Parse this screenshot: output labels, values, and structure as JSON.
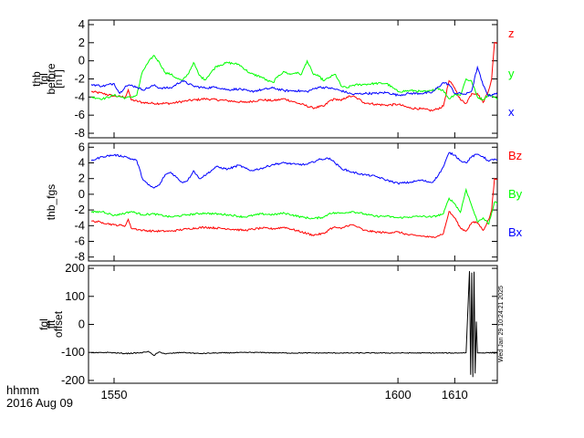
{
  "chart_data": [
    {
      "type": "line",
      "ylabel_lines": [
        "thb",
        "fgl",
        "before",
        "[nT]"
      ],
      "ylim": [
        -8.5,
        4.5
      ],
      "yticks": [
        4,
        2,
        0,
        -2,
        -4,
        -6,
        -8
      ],
      "xlim": [
        1545.5,
        1617.5
      ],
      "series": [
        {
          "name": "z",
          "color": "#ff0000",
          "x": [
            1546,
            1548,
            1550,
            1552,
            1552.5,
            1553,
            1555,
            1557,
            1560,
            1563,
            1566,
            1570,
            1573,
            1576,
            1578,
            1580,
            1583,
            1585,
            1587,
            1588,
            1589,
            1590,
            1591,
            1592,
            1593,
            1594,
            1596,
            1598,
            1600,
            1602,
            1604,
            1606,
            1607,
            1608,
            1609,
            1610,
            1611,
            1612,
            1613,
            1614,
            1615,
            1616,
            1616.5,
            1617,
            1617.5
          ],
          "y": [
            -3.4,
            -3.6,
            -3.9,
            -4.0,
            -3.2,
            -4.3,
            -4.6,
            -4.7,
            -4.7,
            -4.4,
            -4.2,
            -4.4,
            -4.6,
            -4.3,
            -4.4,
            -4.2,
            -4.8,
            -5.2,
            -5.0,
            -4.4,
            -4.2,
            -4.4,
            -4.0,
            -3.9,
            -4.2,
            -4.6,
            -4.8,
            -4.9,
            -4.8,
            -5.2,
            -5.3,
            -5.5,
            -5.3,
            -5.0,
            -2.2,
            -3.0,
            -4.3,
            -4.7,
            -3.6,
            -3.6,
            -4.6,
            -3.2,
            -2.0,
            2.0,
            2.0
          ]
        },
        {
          "name": "y",
          "color": "#00ff00",
          "x": [
            1546,
            1548,
            1550,
            1552,
            1553,
            1554,
            1555,
            1556,
            1557,
            1558,
            1559,
            1560,
            1561,
            1562,
            1563,
            1564,
            1565,
            1566,
            1568,
            1570,
            1572,
            1574,
            1576,
            1577,
            1578,
            1579,
            1580,
            1581,
            1582,
            1583,
            1584,
            1585,
            1586,
            1587,
            1588,
            1589,
            1590,
            1591,
            1592,
            1594,
            1596,
            1598,
            1600,
            1602,
            1603,
            1604,
            1605,
            1606,
            1607,
            1608,
            1609,
            1610,
            1611,
            1612,
            1613,
            1614,
            1615,
            1616,
            1617,
            1617.5
          ],
          "y": [
            -4.0,
            -4.2,
            -3.8,
            -4.1,
            -4.0,
            -3.8,
            -1.2,
            -0.2,
            0.6,
            -0.2,
            -1.3,
            -1.5,
            -1.9,
            -2.2,
            -1.5,
            -0.2,
            -1.6,
            -2.1,
            -0.6,
            -0.2,
            -0.4,
            -1.4,
            -1.8,
            -2.2,
            -2.4,
            -1.6,
            -1.2,
            -1.5,
            -1.3,
            -1.5,
            0.0,
            -1.4,
            -1.7,
            -2.2,
            -1.8,
            -1.5,
            -2.8,
            -3.0,
            -2.7,
            -2.6,
            -2.5,
            -2.5,
            -3.4,
            -3.3,
            -3.3,
            -3.4,
            -3.4,
            -3.3,
            -3.0,
            -3.3,
            -4.2,
            -3.7,
            -3.8,
            -2.0,
            -2.3,
            -4.0,
            -4.3,
            -3.7,
            -4.0,
            -4.3
          ]
        },
        {
          "name": "x",
          "color": "#0000ff",
          "x": [
            1546,
            1548,
            1550,
            1551,
            1552,
            1553,
            1554,
            1555,
            1556,
            1557,
            1558,
            1560,
            1562,
            1564,
            1566,
            1568,
            1570,
            1572,
            1574,
            1576,
            1578,
            1580,
            1582,
            1584,
            1586,
            1588,
            1590,
            1592,
            1594,
            1596,
            1598,
            1600,
            1602,
            1604,
            1606,
            1608,
            1609,
            1610,
            1611,
            1612,
            1613,
            1614,
            1615,
            1616,
            1617,
            1617.5
          ],
          "y": [
            -2.6,
            -2.8,
            -2.5,
            -3.6,
            -2.8,
            -2.7,
            -2.9,
            -3.2,
            -3.0,
            -2.7,
            -3.0,
            -3.0,
            -2.2,
            -2.8,
            -3.0,
            -2.9,
            -3.2,
            -3.1,
            -3.4,
            -3.2,
            -3.0,
            -3.3,
            -3.3,
            -3.4,
            -2.9,
            -3.0,
            -3.3,
            -3.7,
            -3.6,
            -3.6,
            -3.5,
            -3.8,
            -3.6,
            -3.6,
            -3.5,
            -2.4,
            -2.6,
            -3.6,
            -3.6,
            -3.7,
            -3.3,
            -0.7,
            -2.7,
            -3.9,
            -3.6,
            -3.7
          ]
        }
      ]
    },
    {
      "type": "line",
      "ylabel_lines": [
        "thb_fgs"
      ],
      "ylim": [
        -8.5,
        6.5
      ],
      "yticks": [
        6,
        4,
        2,
        0,
        -2,
        -4,
        -6,
        -8
      ],
      "xlim": [
        1545.5,
        1617.5
      ],
      "series": [
        {
          "name": "Bz",
          "color": "#ff0000",
          "x": [
            1546,
            1548,
            1550,
            1552,
            1552.5,
            1553,
            1555,
            1557,
            1560,
            1563,
            1566,
            1570,
            1573,
            1576,
            1578,
            1580,
            1583,
            1585,
            1587,
            1588,
            1589,
            1590,
            1591,
            1592,
            1593,
            1594,
            1596,
            1598,
            1600,
            1602,
            1604,
            1606,
            1607,
            1608,
            1609,
            1610,
            1611,
            1612,
            1613,
            1614,
            1615,
            1616,
            1616.5,
            1617,
            1617.5
          ],
          "y": [
            -3.4,
            -3.6,
            -3.9,
            -4.0,
            -3.2,
            -4.3,
            -4.6,
            -4.7,
            -4.7,
            -4.4,
            -4.2,
            -4.4,
            -4.6,
            -4.3,
            -4.4,
            -4.2,
            -4.8,
            -5.2,
            -5.0,
            -4.4,
            -4.2,
            -4.4,
            -4.0,
            -3.9,
            -4.2,
            -4.6,
            -4.8,
            -4.9,
            -4.8,
            -5.2,
            -5.3,
            -5.5,
            -5.3,
            -5.0,
            -2.2,
            -3.0,
            -4.3,
            -4.7,
            -3.6,
            -3.6,
            -4.6,
            -3.2,
            -2.0,
            2.0,
            2.0
          ]
        },
        {
          "name": "By",
          "color": "#00ff00",
          "x": [
            1546,
            1548,
            1550,
            1552,
            1553,
            1555,
            1557,
            1560,
            1563,
            1566,
            1570,
            1573,
            1576,
            1578,
            1580,
            1583,
            1585,
            1587,
            1588,
            1590,
            1592,
            1594,
            1596,
            1598,
            1600,
            1602,
            1604,
            1606,
            1608,
            1609,
            1610,
            1611,
            1612,
            1613,
            1614,
            1615,
            1616,
            1617,
            1617.5
          ],
          "y": [
            -2.3,
            -2.2,
            -2.7,
            -2.4,
            -2.2,
            -2.6,
            -2.5,
            -2.9,
            -2.6,
            -2.4,
            -2.6,
            -2.9,
            -2.5,
            -2.6,
            -2.4,
            -2.9,
            -3.1,
            -2.9,
            -2.4,
            -2.4,
            -2.2,
            -2.5,
            -2.8,
            -2.8,
            -3.0,
            -2.9,
            -2.8,
            -2.9,
            -2.5,
            -0.5,
            -1.2,
            -2.3,
            0.6,
            -1.5,
            -3.5,
            -3.0,
            -3.8,
            -1.0,
            -1.2
          ]
        },
        {
          "name": "Bx",
          "color": "#0000ff",
          "x": [
            1546,
            1548,
            1550,
            1552,
            1553,
            1554,
            1555,
            1556,
            1557,
            1558,
            1559,
            1560,
            1562,
            1563,
            1564,
            1565,
            1566,
            1568,
            1570,
            1572,
            1574,
            1576,
            1578,
            1580,
            1582,
            1584,
            1586,
            1588,
            1590,
            1592,
            1594,
            1596,
            1598,
            1600,
            1602,
            1604,
            1606,
            1607,
            1608,
            1609,
            1610,
            1611,
            1612,
            1613,
            1614,
            1615,
            1616,
            1617,
            1617.5
          ],
          "y": [
            4.3,
            4.8,
            5.0,
            4.8,
            4.5,
            4.3,
            2.0,
            1.2,
            0.8,
            1.2,
            2.5,
            2.8,
            1.5,
            1.8,
            3.0,
            2.0,
            2.4,
            3.5,
            3.2,
            3.7,
            3.0,
            3.3,
            3.8,
            4.0,
            3.8,
            3.8,
            4.4,
            4.6,
            3.3,
            2.8,
            2.5,
            2.3,
            1.8,
            1.4,
            1.5,
            1.8,
            1.5,
            2.3,
            3.5,
            5.3,
            5.0,
            4.3,
            4.0,
            4.8,
            5.1,
            4.8,
            4.2,
            4.5,
            4.4
          ]
        }
      ]
    },
    {
      "type": "line",
      "ylabel_lines": [
        "fgl",
        "fft",
        "offset"
      ],
      "ylim": [
        -210,
        210
      ],
      "yticks": [
        200,
        100,
        0,
        -100,
        -200
      ],
      "xlim": [
        1545.5,
        1617.5
      ],
      "series": [
        {
          "name": "offset",
          "color": "#000000",
          "x": [
            1546,
            1549,
            1552,
            1555,
            1556,
            1557,
            1558,
            1559,
            1562,
            1565,
            1568,
            1571,
            1575,
            1580,
            1590,
            1600,
            1605,
            1610,
            1612,
            1612.6,
            1612.8,
            1613.0,
            1613.2,
            1613.4,
            1613.6,
            1613.8,
            1614,
            1616,
            1617.5
          ],
          "y": [
            -102,
            -100,
            -104,
            -101,
            -96,
            -111,
            -98,
            -105,
            -100,
            -104,
            -102,
            -101,
            -100,
            -102,
            -102,
            -102,
            -102,
            -102,
            -101,
            190,
            -180,
            185,
            -188,
            188,
            -175,
            10,
            -102,
            -101,
            -102
          ]
        }
      ]
    }
  ],
  "legend": {
    "panel1": [
      {
        "label": "z",
        "color": "#ff0000"
      },
      {
        "label": "y",
        "color": "#00ff00"
      },
      {
        "label": "x",
        "color": "#0000ff"
      }
    ],
    "panel2": [
      {
        "label": "Bz",
        "color": "#ff0000"
      },
      {
        "label": "By",
        "color": "#00ff00"
      },
      {
        "label": "Bx",
        "color": "#0000ff"
      }
    ]
  },
  "x_axis": {
    "ticks": [
      1550,
      1600,
      1610
    ],
    "tick_labels": [
      "1550",
      "1600",
      "1610"
    ],
    "unit_label": "hhmm",
    "date_label": "2016 Aug 09"
  },
  "stamp": "Wed Jan 29 10:24:21 2025"
}
